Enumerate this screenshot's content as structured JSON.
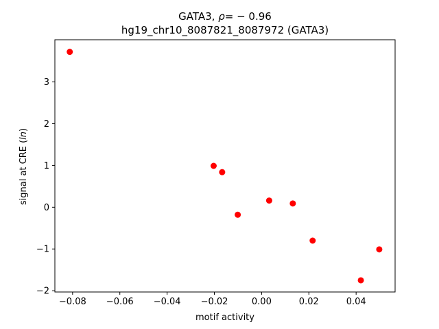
{
  "chart_data": {
    "type": "scatter",
    "title_line1_prefix": "GATA3, ",
    "title_line1_rho": "ρ",
    "title_line1_suffix": "= − 0.96",
    "title_line2": "hg19_chr10_8087821_8087972 (GATA3)",
    "xlabel": "motif activity",
    "ylabel_prefix": "signal at CRE (",
    "ylabel_italic": "ln",
    "ylabel_suffix": ")",
    "xlim": [
      -0.0875,
      0.0565
    ],
    "ylim": [
      -2.03,
      4.01
    ],
    "xticks": [
      -0.08,
      -0.06,
      -0.04,
      -0.02,
      0.0,
      0.02,
      0.04
    ],
    "xtick_labels": [
      "−0.08",
      "−0.06",
      "−0.04",
      "−0.02",
      "0.00",
      "0.02",
      "0.04"
    ],
    "yticks": [
      -2,
      -1,
      0,
      1,
      2,
      3
    ],
    "ytick_labels": [
      "−2",
      "−1",
      "0",
      "1",
      "2",
      "3"
    ],
    "marker_color": "#ff0000",
    "grid": false,
    "points": [
      {
        "x": -0.0812,
        "y": 3.72
      },
      {
        "x": -0.0203,
        "y": 0.99
      },
      {
        "x": -0.0167,
        "y": 0.84
      },
      {
        "x": -0.0101,
        "y": -0.18
      },
      {
        "x": 0.0032,
        "y": 0.16
      },
      {
        "x": 0.0132,
        "y": 0.09
      },
      {
        "x": 0.0216,
        "y": -0.8
      },
      {
        "x": 0.042,
        "y": -1.75
      },
      {
        "x": 0.0498,
        "y": -1.01
      }
    ]
  }
}
